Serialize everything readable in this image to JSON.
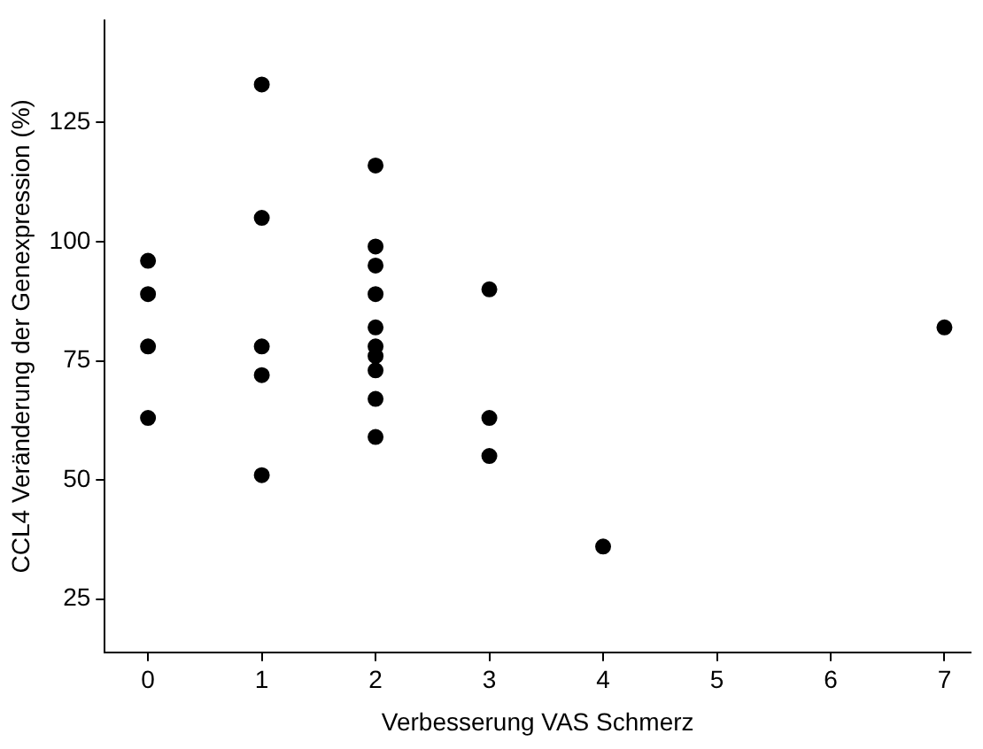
{
  "chart_data": {
    "type": "scatter",
    "xlabel": "Verbesserung VAS Schmerz",
    "ylabel": "CCL4 Veränderung der Genexpression (%)",
    "x": [
      0,
      0,
      0,
      0,
      1,
      1,
      1,
      1,
      1,
      2,
      2,
      2,
      2,
      2,
      2,
      2,
      2,
      2,
      2,
      3,
      3,
      3,
      4,
      7
    ],
    "values": [
      96,
      89,
      78,
      63,
      133,
      105,
      78,
      72,
      51,
      116,
      99,
      95,
      89,
      82,
      78,
      76,
      73,
      67,
      59,
      90,
      63,
      55,
      36,
      82
    ],
    "color": "#000000",
    "marker": "circle",
    "xlim": [
      -0.38,
      7.23
    ],
    "xticks": [
      0,
      1,
      2,
      3,
      4,
      5,
      6,
      7
    ],
    "ylim": [
      13.8,
      146.5
    ],
    "yticks": [
      25,
      50,
      75,
      100,
      125
    ],
    "grid": false,
    "legend": false
  }
}
